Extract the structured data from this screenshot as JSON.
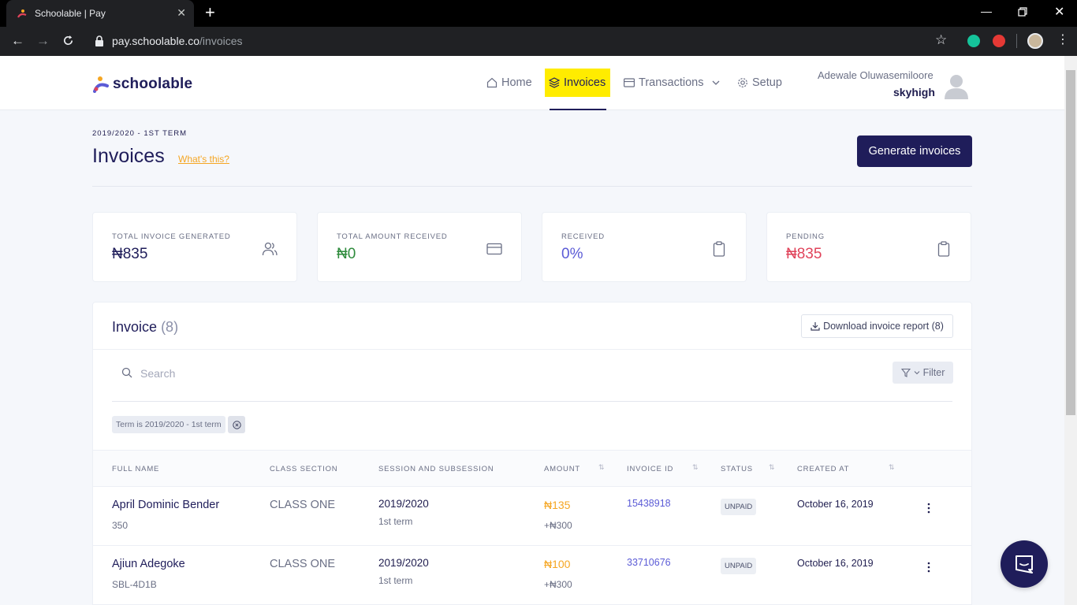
{
  "browser": {
    "tab_title": "Schoolable | Pay",
    "url_host": "pay.schoolable.co",
    "url_path": "/invoices"
  },
  "brand": {
    "name": "schoolable"
  },
  "nav": {
    "home": "Home",
    "invoices": "Invoices",
    "transactions": "Transactions",
    "setup": "Setup"
  },
  "user": {
    "name": "Adewale Oluwasemiloore",
    "school": "skyhigh"
  },
  "page": {
    "term": "2019/2020 - 1ST TERM",
    "title": "Invoices",
    "whats_this": "What's this?",
    "generate_button": "Generate invoices"
  },
  "stats": [
    {
      "label": "TOTAL INVOICE GENERATED",
      "value": "₦835",
      "color": "#1f1d5a",
      "icon": "users-icon"
    },
    {
      "label": "TOTAL AMOUNT RECEIVED",
      "value": "₦0",
      "color": "#2e8b3c",
      "icon": "credit-card-icon"
    },
    {
      "label": "RECEIVED",
      "value": "0%",
      "color": "#5b5bd6",
      "icon": "clipboard-icon"
    },
    {
      "label": "PENDING",
      "value": "₦835",
      "color": "#e0435a",
      "icon": "clipboard-icon"
    }
  ],
  "invoice_panel": {
    "title": "Invoice",
    "count": "(8)",
    "download_button": "Download invoice report (8)",
    "search_placeholder": "Search",
    "filter_button": "Filter",
    "filter_chip": "Term is 2019/2020 - 1st term"
  },
  "table": {
    "headers": {
      "full_name": "FULL NAME",
      "class_section": "CLASS SECTION",
      "session": "SESSION AND SUBSESSION",
      "amount": "AMOUNT",
      "invoice_id": "INVOICE ID",
      "status": "STATUS",
      "created_at": "CREATED AT"
    },
    "rows": [
      {
        "name": "April Dominic Bender",
        "sub": "350",
        "class": "CLASS ONE",
        "session": "2019/2020",
        "subsession": "1st term",
        "amount": "₦135",
        "amount_extra": "+₦300",
        "invoice_id": "15438918",
        "status": "UNPAID",
        "created_at": "October 16, 2019"
      },
      {
        "name": "Ajiun Adegoke",
        "sub": "SBL-4D1B",
        "class": "CLASS ONE",
        "session": "2019/2020",
        "subsession": "1st term",
        "amount": "₦100",
        "amount_extra": "+₦300",
        "invoice_id": "33710676",
        "status": "UNPAID",
        "created_at": "October 16, 2019"
      }
    ]
  },
  "colors": {
    "brand": "#1f1d5a",
    "accent": "#ffec00",
    "warning": "#f5a623",
    "link": "#5b5bd6"
  }
}
